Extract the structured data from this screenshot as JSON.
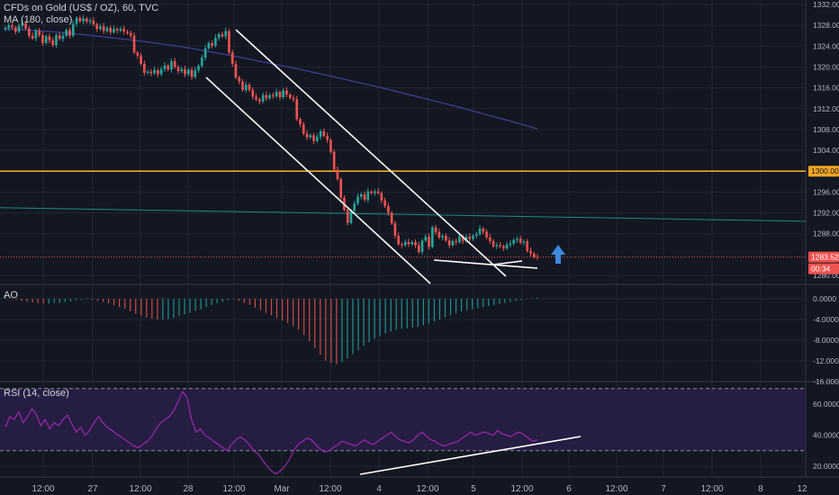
{
  "header": {
    "symbol": "CFDs on Gold (US$ / OZ), 60, TVC",
    "ma": "MA (180, close)",
    "ao": "AO",
    "rsi": "RSI (14, close)"
  },
  "time_axis": [
    "12:00",
    "27",
    "12:00",
    "28",
    "12:00",
    "Mar",
    "12:00",
    "4",
    "12:00",
    "5",
    "12:00",
    "6",
    "12:00",
    "7",
    "12:00",
    "8",
    "12"
  ],
  "price_axis": {
    "ticks": [
      "1332.00",
      "1328.00",
      "1324.00",
      "1320.00",
      "1316.00",
      "1312.00",
      "1308.00",
      "1304.00",
      "1296.00",
      "1292.00",
      "1288.00",
      "1280.00"
    ],
    "last_price": "1283.52",
    "countdown": "00:34",
    "level_label": "1300.00"
  },
  "ao_axis": [
    "0.0000",
    "-4.0000",
    "-8.0000",
    "-12.0000",
    "-16.0000"
  ],
  "rsi_axis": [
    "60.0000",
    "40.0000",
    "20.0000"
  ],
  "colors": {
    "background": "#131722",
    "up": "#26a69a",
    "down": "#ef5350",
    "ma": "#3f3f8f",
    "level": "#f5a623",
    "teal_line": "#1e8a7e",
    "arrow": "#3d8be0",
    "rsi": "#9c27b0",
    "rsi_band": "#2a1f48"
  },
  "icons": {
    "signal": "arrow-up-icon"
  },
  "chart_data": [
    {
      "type": "candlestick",
      "title": "CFDs on Gold (US$ / OZ), 60, TVC",
      "series_names": [
        "MA (180, close)"
      ],
      "ylim": [
        1280,
        1332
      ],
      "x_labels": [
        "12:00",
        "27",
        "12:00",
        "28",
        "12:00",
        "Mar",
        "12:00",
        "4",
        "12:00",
        "5",
        "12:00"
      ],
      "close": [
        1327.5,
        1328.0,
        1327.6,
        1326.8,
        1327.9,
        1328.4,
        1327.4,
        1326.0,
        1325.5,
        1327.0,
        1326.1,
        1324.6,
        1325.9,
        1325.1,
        1324.2,
        1326.1,
        1325.4,
        1326.0,
        1327.1,
        1326.0,
        1328.3,
        1329.4,
        1328.8,
        1329.3,
        1328.7,
        1328.9,
        1328.2,
        1327.3,
        1327.8,
        1326.9,
        1327.5,
        1326.7,
        1327.3,
        1327.0,
        1327.3,
        1326.8,
        1326.5,
        1326.0,
        1322.8,
        1322.2,
        1320.6,
        1318.9,
        1319.1,
        1318.8,
        1319.4,
        1318.6,
        1319.6,
        1320.3,
        1319.5,
        1321.1,
        1320.0,
        1319.2,
        1319.6,
        1318.6,
        1319.5,
        1318.1,
        1319.4,
        1320.2,
        1321.8,
        1323.6,
        1324.6,
        1324.1,
        1325.6,
        1326.3,
        1325.9,
        1326.9,
        1322.8,
        1320.6,
        1318.0,
        1317.2,
        1315.6,
        1316.6,
        1315.6,
        1314.3,
        1313.8,
        1313.4,
        1314.6,
        1314.0,
        1314.6,
        1314.4,
        1315.2,
        1314.2,
        1315.5,
        1314.7,
        1314.1,
        1313.8,
        1310.0,
        1309.0,
        1307.2,
        1306.5,
        1306.9,
        1305.8,
        1306.6,
        1307.7,
        1306.8,
        1306.0,
        1303.7,
        1300.3,
        1298.5,
        1294.9,
        1292.6,
        1290.1,
        1292.4,
        1293.8,
        1295.1,
        1295.6,
        1294.5,
        1296.1,
        1295.8,
        1296.1,
        1295.8,
        1294.4,
        1293.3,
        1292.0,
        1290.0,
        1287.6,
        1286.0,
        1285.8,
        1286.4,
        1286.0,
        1286.4,
        1285.8,
        1284.5,
        1286.7,
        1287.4,
        1285.5,
        1289.2,
        1288.3,
        1287.3,
        1287.6,
        1286.7,
        1285.8,
        1286.6,
        1286.4,
        1287.5,
        1286.6,
        1287.4,
        1287.0,
        1287.6,
        1287.9,
        1289.0,
        1288.4,
        1287.3,
        1286.6,
        1285.6,
        1285.8,
        1285.6,
        1285.2,
        1285.9,
        1286.1,
        1286.8,
        1287.0,
        1286.3,
        1286.5,
        1284.7,
        1284.2,
        1283.6,
        1283.5
      ],
      "ma_y": [
        1327.3,
        1327.1,
        1326.8,
        1326.4,
        1325.9,
        1325.4,
        1324.9,
        1324.3,
        1323.6,
        1322.8,
        1322.0,
        1321.1,
        1320.2,
        1319.3,
        1318.3,
        1317.3,
        1316.3,
        1315.2,
        1314.1,
        1313.0,
        1311.8,
        1310.6,
        1309.4,
        1308.1
      ]
    },
    {
      "type": "bar",
      "title": "AO",
      "ylim": [
        -16,
        1.5
      ],
      "values": [
        0.5,
        0.2,
        -0.2,
        -0.4,
        -0.6,
        -0.7,
        -0.8,
        -0.9,
        -0.9,
        -0.8,
        -0.8,
        -0.6,
        -0.5,
        -0.3,
        -0.2,
        0.0,
        -0.2,
        -0.4,
        -0.6,
        -0.9,
        -1.3,
        -1.6,
        -1.9,
        -2.4,
        -2.9,
        -3.3,
        -3.6,
        -3.8,
        -4.0,
        -4.0,
        -3.9,
        -3.7,
        -3.4,
        -3.0,
        -2.7,
        -2.3,
        -2.0,
        -1.6,
        -1.2,
        -0.9,
        -0.6,
        -0.3,
        -0.1,
        -0.4,
        -0.8,
        -1.2,
        -1.7,
        -2.2,
        -2.7,
        -3.2,
        -3.7,
        -4.2,
        -4.7,
        -5.3,
        -6.0,
        -7.0,
        -8.2,
        -9.5,
        -10.8,
        -11.9,
        -12.4,
        -12.6,
        -12.2,
        -11.5,
        -10.7,
        -9.9,
        -9.1,
        -8.4,
        -7.7,
        -7.2,
        -6.7,
        -6.3,
        -6.0,
        -5.8,
        -5.7,
        -5.6,
        -5.4,
        -5.1,
        -4.8,
        -4.4,
        -4.0,
        -3.6,
        -3.2,
        -2.8,
        -2.5,
        -2.2,
        -2.0,
        -1.8,
        -1.6,
        -1.4,
        -1.2,
        -1.0,
        -0.8,
        -0.6,
        -0.4,
        -0.2,
        -0.1,
        0.1,
        0.2
      ]
    },
    {
      "type": "line",
      "title": "RSI (14, close)",
      "series_names": [
        "RSI (14, close)"
      ],
      "ylim": [
        12,
        72
      ],
      "levels": [
        70,
        30
      ],
      "values": [
        45,
        52,
        50,
        55,
        48,
        52,
        57,
        53,
        46,
        50,
        44,
        48,
        46,
        50,
        53,
        47,
        42,
        45,
        40,
        43,
        48,
        52,
        48,
        45,
        43,
        41,
        39,
        37,
        35,
        33,
        32,
        34,
        36,
        39,
        44,
        48,
        50,
        52,
        56,
        62,
        68,
        64,
        50,
        42,
        44,
        40,
        38,
        36,
        34,
        32,
        30,
        34,
        37,
        39,
        37,
        34,
        30,
        28,
        24,
        20,
        17,
        15,
        17,
        20,
        24,
        30,
        34,
        36,
        38,
        37,
        34,
        31,
        29,
        30,
        32,
        34,
        36,
        35,
        34,
        33,
        35,
        37,
        35,
        34,
        36,
        38,
        40,
        42,
        39,
        37,
        36,
        35,
        37,
        40,
        42,
        39,
        37,
        36,
        34,
        33,
        34,
        35,
        36,
        38,
        40,
        42,
        40,
        41,
        42,
        41,
        40,
        43,
        41,
        40,
        39,
        41,
        42,
        40,
        38,
        36,
        37
      ]
    }
  ]
}
